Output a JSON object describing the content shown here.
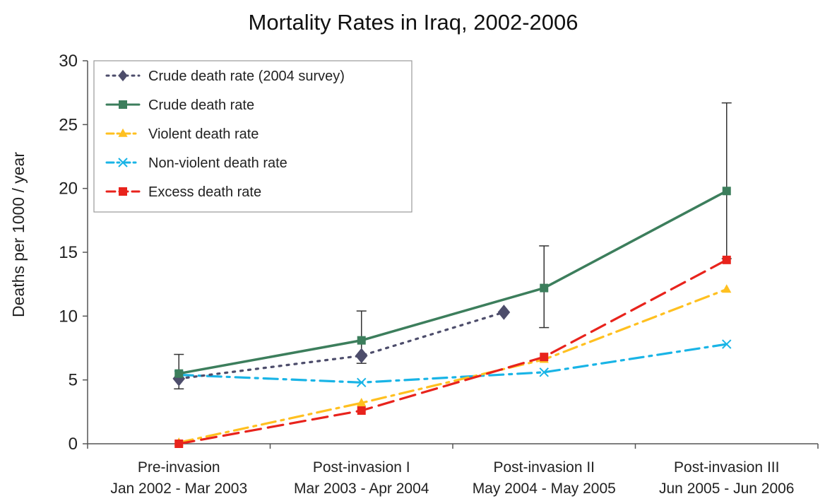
{
  "chart_data": {
    "type": "line",
    "title": "Mortality Rates in Iraq, 2002-2006",
    "xlabel": "",
    "ylabel": "Deaths per 1000 / year",
    "ylim": [
      0,
      30
    ],
    "yticks": [
      0,
      5,
      10,
      15,
      20,
      25,
      30
    ],
    "grid": false,
    "legend_position": "top-left",
    "categories": [
      [
        "Pre-invasion",
        "Jan 2002 - Mar 2003"
      ],
      [
        "Post-invasion I",
        "Mar 2003 - Apr 2004"
      ],
      [
        "Post-invasion II",
        "May 2004 - May 2005"
      ],
      [
        "Post-invasion III",
        "Jun 2005 - Jun 2006"
      ]
    ],
    "series": [
      {
        "name": "Crude death rate (2004 survey)",
        "color": "#4d4d6b",
        "line_style": "dotted",
        "marker": "diamond",
        "x": [
          0,
          1,
          1.78
        ],
        "values": [
          5.1,
          6.9,
          10.3
        ]
      },
      {
        "name": "Crude death rate",
        "color": "#3c7e5c",
        "line_style": "solid",
        "marker": "square",
        "x": [
          0,
          1,
          2,
          3
        ],
        "values": [
          5.5,
          8.1,
          12.2,
          19.8
        ],
        "error_low": [
          4.3,
          6.3,
          9.1,
          14.5
        ],
        "error_high": [
          7.0,
          10.4,
          15.5,
          26.7
        ]
      },
      {
        "name": "Violent death rate",
        "color": "#ffc020",
        "line_style": "dash-dot",
        "marker": "triangle",
        "x": [
          0,
          1,
          2,
          3
        ],
        "values": [
          0.1,
          3.2,
          6.6,
          12.1
        ]
      },
      {
        "name": "Non-violent death rate",
        "color": "#19b4e6",
        "line_style": "dash-dot",
        "marker": "x",
        "x": [
          0,
          1,
          2,
          3
        ],
        "values": [
          5.4,
          4.8,
          5.6,
          7.8
        ]
      },
      {
        "name": "Excess death rate",
        "color": "#e8231c",
        "line_style": "dashed",
        "marker": "square",
        "x": [
          0,
          1,
          2,
          3
        ],
        "values": [
          0.0,
          2.6,
          6.8,
          14.4
        ]
      }
    ]
  }
}
